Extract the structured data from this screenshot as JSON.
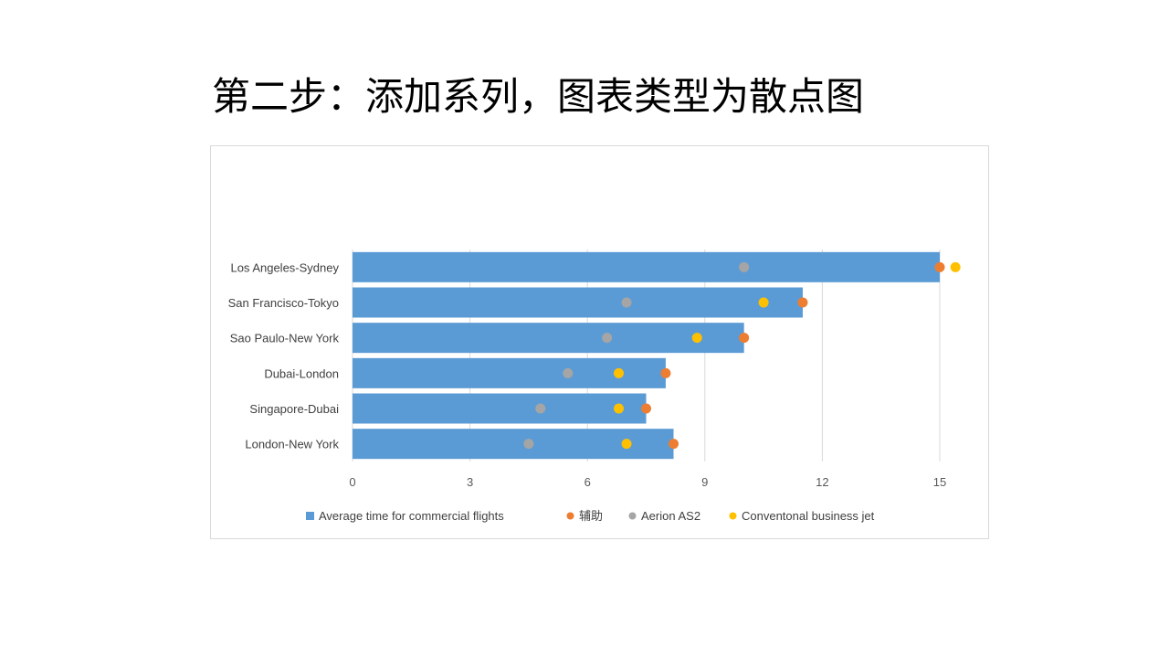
{
  "slide": {
    "title": "第二步：添加系列，图表类型为散点图"
  },
  "chart_data": {
    "type": "bar",
    "orientation": "horizontal",
    "categories": [
      "Los Angeles-Sydney",
      "San Francisco-Tokyo",
      "Sao Paulo-New York",
      "Dubai-London",
      "Singapore-Dubai",
      "London-New York"
    ],
    "xlim": [
      0,
      15
    ],
    "xticks": [
      "0",
      "3",
      "6",
      "9",
      "12",
      "15"
    ],
    "grid": "vertical",
    "legend_position": "bottom",
    "series": [
      {
        "name": "Average time for commercial flights",
        "kind": "bar",
        "color": "#5B9BD5",
        "values": [
          15,
          11.5,
          10,
          8,
          7.5,
          8.2
        ]
      },
      {
        "name": "辅助",
        "kind": "scatter",
        "color": "#ED7D31",
        "values": [
          15,
          11.5,
          10,
          8,
          7.5,
          8.2
        ]
      },
      {
        "name": "Aerion AS2",
        "kind": "scatter",
        "color": "#A5A5A5",
        "values": [
          10,
          7,
          6.5,
          5.5,
          4.8,
          4.5
        ]
      },
      {
        "name": "Conventonal business jet",
        "kind": "scatter",
        "color": "#FFC000",
        "values": [
          15.4,
          10.5,
          8.8,
          6.8,
          6.8,
          7
        ]
      }
    ]
  }
}
